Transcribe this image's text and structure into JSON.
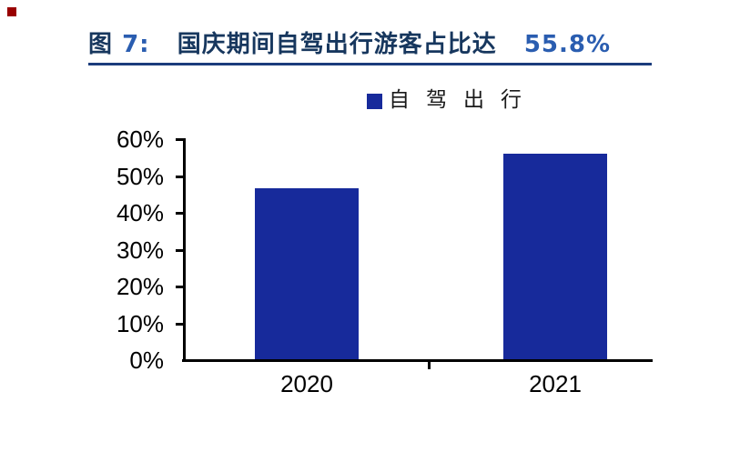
{
  "figure": {
    "fig_zh": "图",
    "fig_num": "7:",
    "title_text": "国庆期间自驾出行游客占比达",
    "title_value": "55.8%"
  },
  "legend": {
    "label": "自驾出行"
  },
  "colors": {
    "bar_fill": "#172a9b",
    "title_chinese": "#17375e",
    "title_numerals": "#2a5db0",
    "underline": "#1b3c7c",
    "axis": "#000000",
    "corner_marker": "#990000"
  },
  "chart_data": {
    "type": "bar",
    "title": "图 7: 国庆期间自驾出行游客占比达 55.8%",
    "categories": [
      "2020",
      "2021"
    ],
    "series": [
      {
        "name": "自驾出行",
        "values": [
          46.3,
          55.8
        ]
      }
    ],
    "ylim": [
      0,
      60
    ],
    "ytick_labels": [
      "0%",
      "10%",
      "20%",
      "30%",
      "40%",
      "50%",
      "60%"
    ],
    "xlabel": "",
    "ylabel": "",
    "grid": false,
    "legend_position": "top-center",
    "bar_color": "#172a9b"
  }
}
